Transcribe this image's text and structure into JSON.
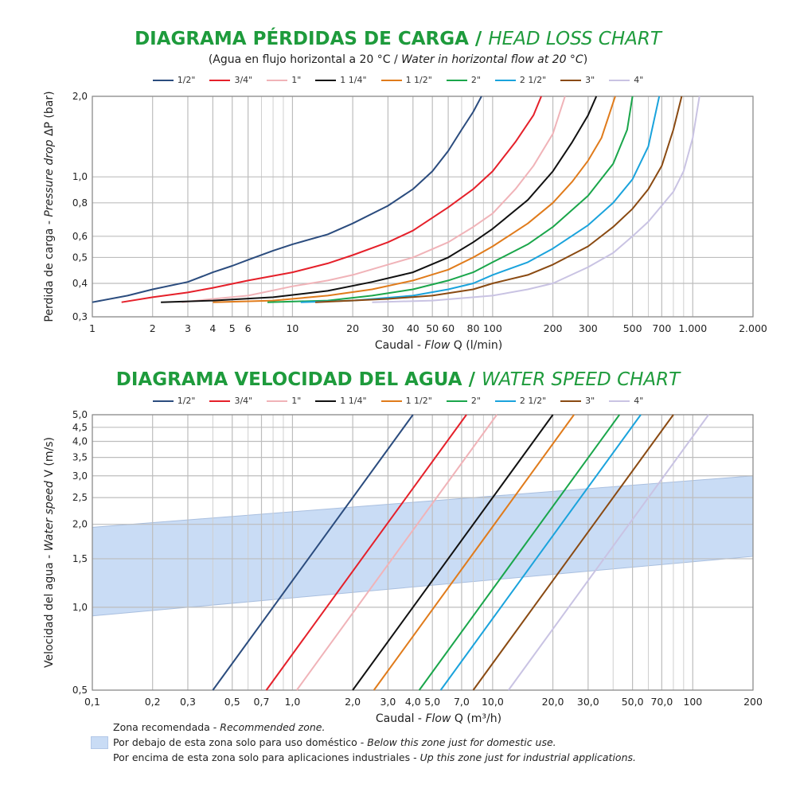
{
  "chart1": {
    "title_es": "DIAGRAMA PÉRDIDAS DE CARGA /",
    "title_en": "HEAD LOSS CHART",
    "subtitle_es": "(Agua en flujo horizontal a 20 °C /",
    "subtitle_en": "Water in horizontal flow at 20 °C",
    "subtitle_close": ")"
  },
  "chart2": {
    "title_es": "DIAGRAMA VELOCIDAD DEL AGUA /",
    "title_en": "WATER SPEED CHART"
  },
  "legend": [
    "1/2\"",
    "3/4\"",
    "1\"",
    "1 1/4\"",
    "1 1/2\"",
    "2\"",
    "2 1/2\"",
    "3\"",
    "4\""
  ],
  "colors": {
    "title_green": "#1e9b3c",
    "series": [
      "#2b4c7e",
      "#e5202a",
      "#f0b3b8",
      "#111111",
      "#e07b1b",
      "#1aa64b",
      "#1aa3dc",
      "#8a4a12",
      "#c9c3e3"
    ],
    "zone_fill": "#c9dcf5",
    "grid": "#bdbdbd"
  },
  "footer": {
    "line1_es": "Zona recomendada - ",
    "line1_en": "Recommended zone.",
    "line2_es": "Por debajo de esta zona solo para uso doméstico - ",
    "line2_en": "Below this zone just for domestic use.",
    "line3_es": "Por encima de esta zona solo para aplicaciones industriales - ",
    "line3_en": "Up this zone just for industrial applications."
  },
  "chart_data": [
    {
      "type": "line",
      "title": "DIAGRAMA PÉRDIDAS DE CARGA / HEAD LOSS CHART",
      "xscale": "log",
      "yscale": "log",
      "xlim": [
        1,
        2000
      ],
      "ylim": [
        0.3,
        2.0
      ],
      "xlabel_es": "Caudal - ",
      "xlabel_en": "Flow",
      "xlabel_unit": "  Q (l/min)",
      "ylabel_es": "Perdida de carga - ",
      "ylabel_en": "Pressure drop",
      "ylabel_unit": "  ΔP (bar)",
      "xticks": [
        1,
        2,
        3,
        4,
        5,
        6,
        10,
        20,
        30,
        40,
        50,
        60,
        80,
        100,
        200,
        300,
        500,
        700,
        1000,
        2000
      ],
      "xtick_labels": [
        "1",
        "2",
        "3",
        "4",
        "5",
        "6",
        "10",
        "20",
        "30",
        "40",
        "50",
        "60",
        "80",
        "100",
        "200",
        "300",
        "500",
        "700",
        "1.000",
        "2.000"
      ],
      "yticks": [
        0.3,
        0.4,
        0.5,
        0.6,
        0.8,
        1.0,
        2.0
      ],
      "ytick_labels": [
        "0,3",
        "0,4",
        "0,5",
        "0,6",
        "0,8",
        "1,0",
        "2,0"
      ],
      "grid": true,
      "legend_position": "top",
      "series": [
        {
          "name": "1/2\"",
          "points": [
            [
              1,
              0.34
            ],
            [
              1.5,
              0.36
            ],
            [
              2,
              0.38
            ],
            [
              3,
              0.405
            ],
            [
              4,
              0.44
            ],
            [
              5,
              0.465
            ],
            [
              6,
              0.49
            ],
            [
              8,
              0.53
            ],
            [
              10,
              0.56
            ],
            [
              15,
              0.61
            ],
            [
              20,
              0.67
            ],
            [
              30,
              0.78
            ],
            [
              40,
              0.9
            ],
            [
              50,
              1.05
            ],
            [
              60,
              1.25
            ],
            [
              70,
              1.5
            ],
            [
              80,
              1.75
            ],
            [
              88,
              2.0
            ]
          ]
        },
        {
          "name": "3/4\"",
          "points": [
            [
              1.4,
              0.34
            ],
            [
              2,
              0.355
            ],
            [
              3,
              0.37
            ],
            [
              4,
              0.385
            ],
            [
              6,
              0.41
            ],
            [
              10,
              0.44
            ],
            [
              15,
              0.475
            ],
            [
              20,
              0.51
            ],
            [
              30,
              0.57
            ],
            [
              40,
              0.63
            ],
            [
              60,
              0.77
            ],
            [
              80,
              0.9
            ],
            [
              100,
              1.05
            ],
            [
              130,
              1.35
            ],
            [
              160,
              1.7
            ],
            [
              175,
              2.0
            ]
          ]
        },
        {
          "name": "1\"",
          "points": [
            [
              2.8,
              0.34
            ],
            [
              4,
              0.35
            ],
            [
              6,
              0.36
            ],
            [
              10,
              0.39
            ],
            [
              15,
              0.41
            ],
            [
              20,
              0.43
            ],
            [
              30,
              0.47
            ],
            [
              40,
              0.5
            ],
            [
              60,
              0.57
            ],
            [
              80,
              0.65
            ],
            [
              100,
              0.73
            ],
            [
              130,
              0.9
            ],
            [
              160,
              1.1
            ],
            [
              200,
              1.45
            ],
            [
              230,
              2.0
            ]
          ]
        },
        {
          "name": "1 1/4\"",
          "points": [
            [
              2.2,
              0.34
            ],
            [
              4,
              0.345
            ],
            [
              8,
              0.355
            ],
            [
              15,
              0.375
            ],
            [
              25,
              0.405
            ],
            [
              40,
              0.44
            ],
            [
              60,
              0.5
            ],
            [
              80,
              0.57
            ],
            [
              100,
              0.64
            ],
            [
              150,
              0.82
            ],
            [
              200,
              1.05
            ],
            [
              250,
              1.35
            ],
            [
              300,
              1.7
            ],
            [
              330,
              2.0
            ]
          ]
        },
        {
          "name": "1 1/2\"",
          "points": [
            [
              4,
              0.34
            ],
            [
              8,
              0.345
            ],
            [
              15,
              0.36
            ],
            [
              25,
              0.38
            ],
            [
              40,
              0.41
            ],
            [
              60,
              0.45
            ],
            [
              80,
              0.5
            ],
            [
              100,
              0.55
            ],
            [
              150,
              0.67
            ],
            [
              200,
              0.8
            ],
            [
              250,
              0.96
            ],
            [
              300,
              1.15
            ],
            [
              350,
              1.4
            ],
            [
              410,
              2.0
            ]
          ]
        },
        {
          "name": "2\"",
          "points": [
            [
              7.5,
              0.34
            ],
            [
              15,
              0.345
            ],
            [
              25,
              0.36
            ],
            [
              40,
              0.38
            ],
            [
              60,
              0.41
            ],
            [
              80,
              0.44
            ],
            [
              100,
              0.48
            ],
            [
              150,
              0.56
            ],
            [
              200,
              0.65
            ],
            [
              300,
              0.85
            ],
            [
              400,
              1.12
            ],
            [
              470,
              1.5
            ],
            [
              500,
              2.0
            ]
          ]
        },
        {
          "name": "2 1/2\"",
          "points": [
            [
              11,
              0.34
            ],
            [
              20,
              0.345
            ],
            [
              40,
              0.36
            ],
            [
              60,
              0.38
            ],
            [
              80,
              0.4
            ],
            [
              100,
              0.43
            ],
            [
              150,
              0.48
            ],
            [
              200,
              0.54
            ],
            [
              300,
              0.66
            ],
            [
              400,
              0.8
            ],
            [
              500,
              0.98
            ],
            [
              600,
              1.3
            ],
            [
              680,
              2.0
            ]
          ]
        },
        {
          "name": "3\"",
          "points": [
            [
              13,
              0.34
            ],
            [
              30,
              0.35
            ],
            [
              50,
              0.36
            ],
            [
              80,
              0.38
            ],
            [
              100,
              0.4
            ],
            [
              150,
              0.43
            ],
            [
              200,
              0.47
            ],
            [
              300,
              0.55
            ],
            [
              400,
              0.65
            ],
            [
              500,
              0.76
            ],
            [
              600,
              0.9
            ],
            [
              700,
              1.1
            ],
            [
              800,
              1.5
            ],
            [
              880,
              2.0
            ]
          ]
        },
        {
          "name": "4\"",
          "points": [
            [
              25,
              0.34
            ],
            [
              50,
              0.345
            ],
            [
              100,
              0.36
            ],
            [
              150,
              0.38
            ],
            [
              200,
              0.4
            ],
            [
              300,
              0.46
            ],
            [
              400,
              0.52
            ],
            [
              500,
              0.6
            ],
            [
              600,
              0.68
            ],
            [
              800,
              0.88
            ],
            [
              900,
              1.05
            ],
            [
              1000,
              1.4
            ],
            [
              1080,
              2.0
            ]
          ]
        }
      ]
    },
    {
      "type": "line",
      "title": "DIAGRAMA VELOCIDAD DEL AGUA / WATER SPEED CHART",
      "xscale": "log",
      "yscale": "log",
      "xlim": [
        0.1,
        200
      ],
      "ylim": [
        0.5,
        5.0
      ],
      "xlabel_es": "Caudal - ",
      "xlabel_en": "Flow",
      "xlabel_unit": "  Q (m³/h)",
      "ylabel_es": "Velocidad del agua - ",
      "ylabel_en": "Water speed",
      "ylabel_unit": "  V (m/s)",
      "xticks": [
        0.1,
        0.2,
        0.3,
        0.5,
        0.7,
        1.0,
        2.0,
        3.0,
        4.0,
        5.0,
        7.0,
        10.0,
        20.0,
        30.0,
        50.0,
        70.0,
        100,
        200
      ],
      "xtick_labels": [
        "0,1",
        "0,2",
        "0,3",
        "0,5",
        "0,7",
        "1,0",
        "2,0",
        "3,0",
        "4,0",
        "5,0",
        "7,0",
        "10,0",
        "20,0",
        "30,0",
        "50,0",
        "70,0",
        "100",
        "200"
      ],
      "yticks": [
        0.5,
        1.0,
        1.5,
        2.0,
        2.5,
        3.0,
        3.5,
        4.0,
        4.5,
        5.0
      ],
      "ytick_labels": [
        "0,5",
        "1,0",
        "1,5",
        "2,0",
        "2,5",
        "3,0",
        "3,5",
        "4,0",
        "4,5",
        "5,0"
      ],
      "grid": true,
      "legend_position": "top",
      "recommended_zone": {
        "lower": [
          [
            0.1,
            0.93
          ],
          [
            200,
            1.53
          ]
        ],
        "upper": [
          [
            0.1,
            1.95
          ],
          [
            200,
            3.0
          ]
        ]
      },
      "series": [
        {
          "name": "1/2\"",
          "points": [
            [
              0.4,
              0.5
            ],
            [
              4.0,
              5.0
            ]
          ]
        },
        {
          "name": "3/4\"",
          "points": [
            [
              0.74,
              0.5
            ],
            [
              7.4,
              5.0
            ]
          ]
        },
        {
          "name": "1\"",
          "points": [
            [
              1.05,
              0.5
            ],
            [
              10.5,
              5.0
            ]
          ]
        },
        {
          "name": "1 1/4\"",
          "points": [
            [
              2.0,
              0.5
            ],
            [
              20.0,
              5.0
            ]
          ]
        },
        {
          "name": "1 1/2\"",
          "points": [
            [
              2.55,
              0.5
            ],
            [
              25.5,
              5.0
            ]
          ]
        },
        {
          "name": "2\"",
          "points": [
            [
              4.3,
              0.5
            ],
            [
              43.0,
              5.0
            ]
          ]
        },
        {
          "name": "2 1/2\"",
          "points": [
            [
              5.5,
              0.5
            ],
            [
              55.0,
              5.0
            ]
          ]
        },
        {
          "name": "3\"",
          "points": [
            [
              8.0,
              0.5
            ],
            [
              80.0,
              5.0
            ]
          ]
        },
        {
          "name": "4\"",
          "points": [
            [
              12.0,
              0.5
            ],
            [
              120.0,
              5.0
            ]
          ]
        }
      ]
    }
  ]
}
